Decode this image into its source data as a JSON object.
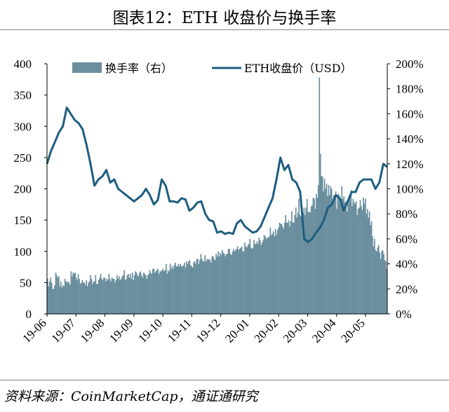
{
  "header": {
    "title": "图表12：ETH 收盘价与换手率"
  },
  "footer": {
    "source": "资料来源：CoinMarketCap，通证通研究"
  },
  "chart_data": {
    "type": "bar+line",
    "x_ticks": [
      "19-06",
      "19-07",
      "19-08",
      "19-09",
      "19-10",
      "19-11",
      "19-12",
      "20-01",
      "20-02",
      "20-03",
      "20-04",
      "20-05"
    ],
    "left_axis": {
      "ylim": [
        0,
        400
      ],
      "ticks": [
        "0",
        "50",
        "100",
        "150",
        "200",
        "250",
        "300",
        "350",
        "400"
      ]
    },
    "right_axis": {
      "ylim": [
        0,
        2.0
      ],
      "ticks": [
        "0%",
        "20%",
        "40%",
        "60%",
        "80%",
        "100%",
        "120%",
        "140%",
        "160%",
        "180%",
        "200%"
      ]
    },
    "legend": {
      "placement": "top",
      "bar_label": "换手率（右）",
      "line_label": "ETH收盘价（USD）"
    },
    "colors": {
      "bar": "#6b8f9e",
      "line": "#1d5d80"
    },
    "series": [
      {
        "kind": "line",
        "axis": "left",
        "sampling": "approx. every 3 days, 2019-06-01 to 2020-05-29",
        "values": [
          240,
          260,
          275,
          290,
          300,
          330,
          320,
          310,
          305,
          295,
          270,
          240,
          205,
          215,
          220,
          230,
          210,
          215,
          200,
          195,
          190,
          185,
          180,
          185,
          190,
          200,
          190,
          175,
          182,
          215,
          205,
          180,
          180,
          178,
          185,
          183,
          165,
          170,
          178,
          180,
          160,
          150,
          148,
          130,
          132,
          128,
          130,
          128,
          145,
          150,
          140,
          135,
          130,
          132,
          140,
          155,
          170,
          185,
          215,
          250,
          230,
          238,
          215,
          210,
          195,
          120,
          115,
          120,
          130,
          138,
          150,
          170,
          175,
          190,
          185,
          165,
          180,
          195,
          195,
          210,
          215,
          215,
          215,
          200,
          210,
          240,
          235
        ]
      },
      {
        "kind": "bar",
        "axis": "right",
        "sampling": "daily, 2019-06-01 to 2020-05-29",
        "values": [
          0.28,
          0.22,
          0.26,
          0.29,
          0.25,
          0.2,
          0.2,
          0.23,
          0.33,
          0.31,
          0.29,
          0.3,
          0.22,
          0.26,
          0.21,
          0.23,
          0.22,
          0.28,
          0.26,
          0.25,
          0.26,
          0.25,
          0.23,
          0.34,
          0.3,
          0.33,
          0.32,
          0.33,
          0.29,
          0.27,
          0.32,
          0.28,
          0.24,
          0.25,
          0.27,
          0.25,
          0.25,
          0.23,
          0.27,
          0.22,
          0.25,
          0.26,
          0.31,
          0.28,
          0.24,
          0.26,
          0.26,
          0.31,
          0.24,
          0.24,
          0.27,
          0.29,
          0.32,
          0.28,
          0.27,
          0.29,
          0.29,
          0.26,
          0.28,
          0.27,
          0.32,
          0.28,
          0.26,
          0.29,
          0.28,
          0.28,
          0.25,
          0.27,
          0.31,
          0.28,
          0.3,
          0.27,
          0.28,
          0.3,
          0.31,
          0.35,
          0.27,
          0.28,
          0.31,
          0.32,
          0.29,
          0.32,
          0.28,
          0.33,
          0.27,
          0.31,
          0.34,
          0.33,
          0.31,
          0.3,
          0.33,
          0.34,
          0.31,
          0.29,
          0.33,
          0.32,
          0.31,
          0.28,
          0.31,
          0.32,
          0.35,
          0.33,
          0.32,
          0.36,
          0.36,
          0.33,
          0.34,
          0.35,
          0.36,
          0.32,
          0.34,
          0.34,
          0.35,
          0.36,
          0.34,
          0.35,
          0.4,
          0.32,
          0.35,
          0.34,
          0.4,
          0.36,
          0.38,
          0.36,
          0.39,
          0.41,
          0.38,
          0.38,
          0.4,
          0.38,
          0.4,
          0.38,
          0.38,
          0.39,
          0.41,
          0.37,
          0.42,
          0.4,
          0.42,
          0.43,
          0.39,
          0.38,
          0.37,
          0.41,
          0.42,
          0.4,
          0.44,
          0.44,
          0.4,
          0.43,
          0.48,
          0.44,
          0.42,
          0.42,
          0.47,
          0.42,
          0.44,
          0.43,
          0.44,
          0.43,
          0.41,
          0.46,
          0.46,
          0.44,
          0.43,
          0.48,
          0.46,
          0.5,
          0.46,
          0.49,
          0.47,
          0.51,
          0.49,
          0.48,
          0.46,
          0.48,
          0.48,
          0.52,
          0.52,
          0.48,
          0.47,
          0.5,
          0.52,
          0.5,
          0.51,
          0.52,
          0.54,
          0.51,
          0.52,
          0.53,
          0.54,
          0.5,
          0.5,
          0.57,
          0.54,
          0.53,
          0.55,
          0.56,
          0.6,
          0.53,
          0.52,
          0.53,
          0.59,
          0.56,
          0.56,
          0.58,
          0.56,
          0.61,
          0.59,
          0.55,
          0.57,
          0.59,
          0.63,
          0.62,
          0.6,
          0.61,
          0.61,
          0.62,
          0.69,
          0.63,
          0.64,
          0.66,
          0.62,
          0.68,
          0.63,
          0.67,
          0.69,
          0.73,
          0.72,
          0.72,
          0.7,
          0.68,
          0.73,
          0.79,
          0.73,
          0.73,
          0.75,
          0.7,
          0.74,
          0.82,
          0.73,
          0.73,
          0.79,
          0.85,
          0.77,
          0.81,
          0.92,
          0.79,
          0.78,
          0.85,
          0.81,
          0.85,
          0.79,
          0.85,
          0.92,
          0.81,
          0.82,
          0.81,
          0.86,
          0.87,
          0.93,
          0.92,
          0.84,
          0.96,
          0.93,
          1.03,
          1.89,
          1.28,
          1.1,
          1.1,
          0.98,
          1.08,
          1.0,
          1.04,
          0.94,
          1.03,
          0.95,
          1.02,
          1.0,
          0.92,
          0.95,
          0.94,
          0.98,
          0.84,
          0.95,
          0.96,
          0.89,
          0.9,
          1.02,
          0.92,
          0.94,
          0.89,
          0.9,
          0.82,
          0.88,
          0.92,
          0.95,
          0.99,
          0.86,
          0.92,
          0.89,
          0.88,
          0.9,
          0.79,
          0.84,
          0.85,
          0.91,
          0.86,
          0.83,
          0.93,
          0.88,
          0.92,
          0.8,
          0.84,
          0.77,
          0.82,
          0.71,
          0.74,
          0.62,
          0.54,
          0.6,
          0.51,
          0.5,
          0.53,
          0.55,
          0.49,
          0.44,
          0.5,
          0.51,
          0.48,
          0.43,
          0.42,
          0.36
        ]
      }
    ]
  }
}
